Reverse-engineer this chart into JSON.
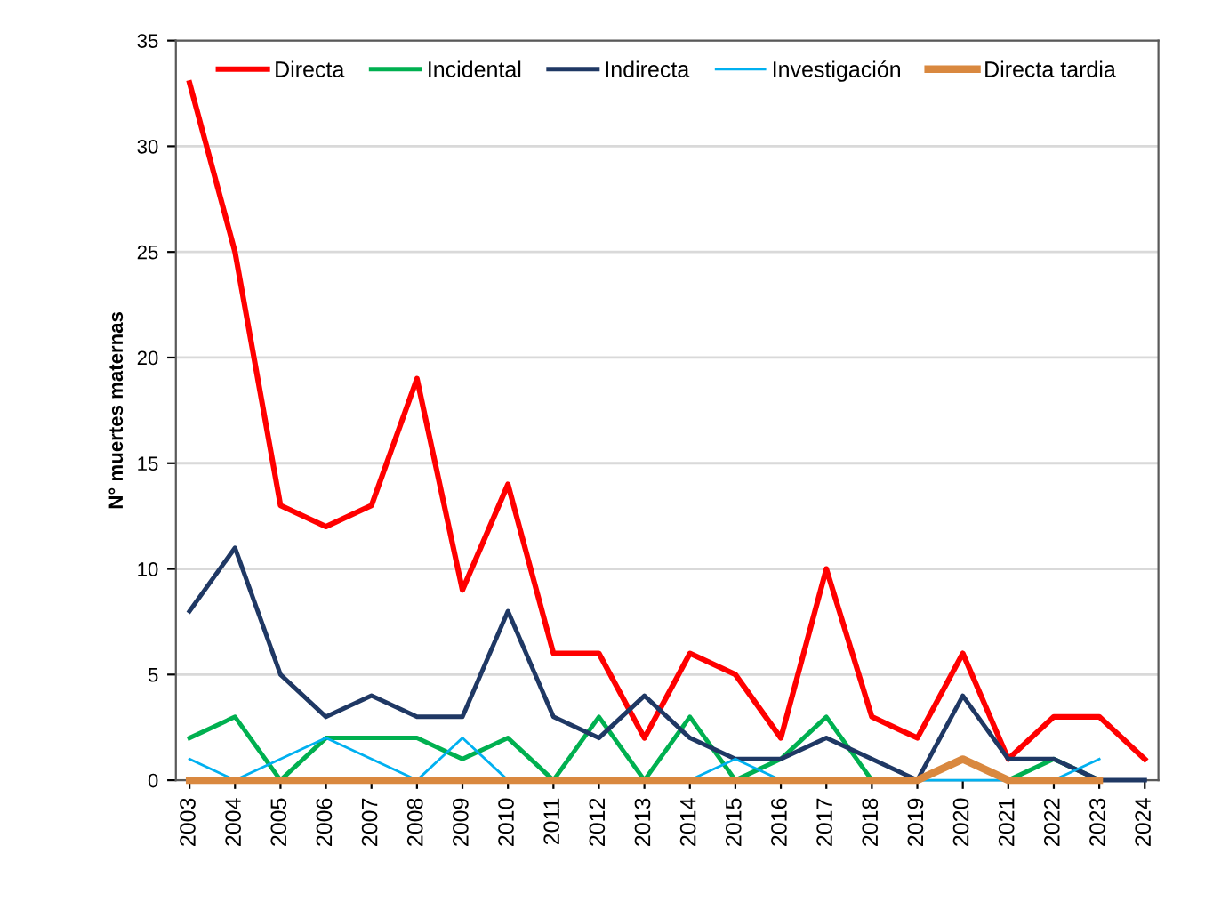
{
  "chart_data": {
    "type": "line",
    "ylabel": "N° muertes maternas",
    "categories": [
      "2003",
      "2004",
      "2005",
      "2006",
      "2007",
      "2008",
      "2009",
      "2010",
      "2011",
      "2012",
      "2013",
      "2014",
      "2015",
      "2016",
      "2017",
      "2018",
      "2019",
      "2020",
      "2021",
      "2022",
      "2023",
      "2024"
    ],
    "series": [
      {
        "name": "Directa",
        "color": "#ff0000",
        "values": [
          33,
          25,
          13,
          12,
          13,
          19,
          9,
          14,
          6,
          6,
          2,
          6,
          5,
          2,
          10,
          3,
          2,
          6,
          1,
          3,
          3,
          1
        ]
      },
      {
        "name": "Incidental",
        "color": "#00b050",
        "values": [
          2,
          3,
          0,
          2,
          2,
          2,
          1,
          2,
          0,
          3,
          0,
          3,
          0,
          1,
          3,
          0,
          0,
          null,
          0,
          1,
          0,
          null
        ]
      },
      {
        "name": "Indirecta",
        "color": "#1f3864",
        "values": [
          8,
          11,
          5,
          3,
          4,
          3,
          3,
          8,
          3,
          2,
          4,
          2,
          1,
          1,
          2,
          1,
          0,
          4,
          1,
          1,
          0,
          0
        ]
      },
      {
        "name": "Investigación",
        "color": "#00b0f0",
        "values": [
          1,
          0,
          1,
          2,
          1,
          0,
          2,
          0,
          0,
          0,
          0,
          0,
          1,
          0,
          0,
          0,
          0,
          0,
          0,
          0,
          1,
          null
        ]
      },
      {
        "name": "Directa tardia",
        "color": "#d9883f",
        "values": [
          0,
          0,
          0,
          0,
          0,
          0,
          0,
          0,
          0,
          0,
          0,
          0,
          0,
          0,
          0,
          0,
          0,
          1,
          0,
          0,
          0,
          null
        ]
      }
    ],
    "ylim": [
      0,
      35
    ],
    "yticks": [
      0,
      5,
      10,
      15,
      20,
      25,
      30,
      35
    ],
    "grid": "y",
    "legend": "top",
    "marker": "none",
    "line_style": "solid"
  }
}
